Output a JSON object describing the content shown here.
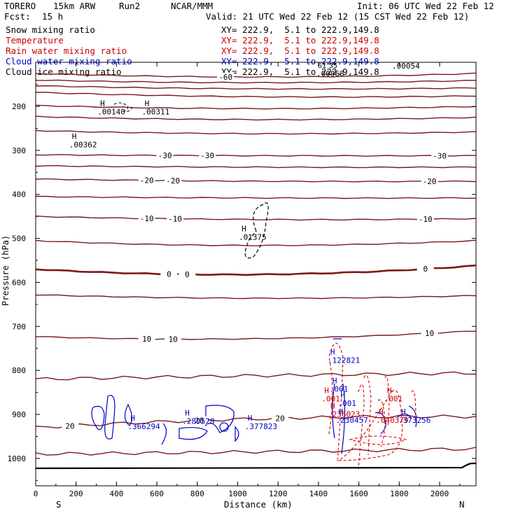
{
  "header": {
    "model": "TORERO",
    "res": "15km ARW",
    "run": "Run2",
    "org": "NCAR/MMM",
    "init": "Init: 06 UTC Wed 22 Feb 12",
    "fcst_label": "Fcst:",
    "fcst_value": "15 h",
    "valid": "Valid: 21 UTC Wed 22 Feb 12 (15 CST Wed 22 Feb 12)"
  },
  "legend": [
    {
      "name": "Snow mixing ratio",
      "xy": "XY= 222.9,  5.1 to 222.9,149.8",
      "color": "#000000"
    },
    {
      "name": "Temperature",
      "xy": "XY= 222.9,  5.1 to 222.9,149.8",
      "color": "#cc0000"
    },
    {
      "name": "Rain water mixing ratio",
      "xy": "XY= 222.9,  5.1 to 222.9,149.8",
      "color": "#cc0000"
    },
    {
      "name": "Cloud water mixing ratio",
      "xy": "XY= 222.9,  5.1 to 222.9,149.8",
      "color": "#0000cc"
    },
    {
      "name": "Cloud ice mixing ratio",
      "xy": "XY= 222.9,  5.1 to 222.9,149.8",
      "color": "#000000"
    }
  ],
  "overlap_labels": [
    ".00054",
    ".00068",
    "61",
    "35"
  ],
  "colors": {
    "temperature": "#7a1a1a",
    "freezing": "#7a1a1a",
    "rain": "#dd0000",
    "cloud_water": "#0000cc",
    "snow": "#000000",
    "terrain": "#000000"
  },
  "chart_data": {
    "type": "contour-cross-section",
    "xlabel": "Distance (km)",
    "ylabel": "Pressure (hPa)",
    "xlim": [
      0,
      2180
    ],
    "ylim_hpa": [
      1050,
      100
    ],
    "x_ticks": [
      0,
      200,
      400,
      600,
      800,
      1000,
      1200,
      1400,
      1600,
      1800,
      2000
    ],
    "y_ticks": [
      200,
      300,
      400,
      500,
      600,
      700,
      800,
      900,
      1000
    ],
    "endpoints": {
      "left": "S",
      "right": "N"
    },
    "temperature_contours": [
      {
        "value": -60,
        "label": "-60",
        "p_left": 125,
        "p_mid": 133,
        "p_right": 125,
        "labels_at_km": [
          940
        ]
      },
      {
        "value": -55,
        "label": "",
        "p_left": 140,
        "p_mid": 146,
        "p_right": 141,
        "labels_at_km": []
      },
      {
        "value": -50,
        "label": "",
        "p_left": 153,
        "p_mid": 160,
        "p_right": 158,
        "labels_at_km": []
      },
      {
        "value": -45,
        "label": "",
        "p_left": 168,
        "p_mid": 178,
        "p_right": 176,
        "labels_at_km": []
      },
      {
        "value": -40,
        "label": "",
        "p_left": 198,
        "p_mid": 205,
        "p_right": 200,
        "labels_at_km": []
      },
      {
        "value": -40,
        "label": "",
        "p_left": 223,
        "p_mid": 230,
        "p_right": 225,
        "labels_at_km": []
      },
      {
        "value": -35,
        "label": "",
        "p_left": 255,
        "p_mid": 262,
        "p_right": 258,
        "labels_at_km": []
      },
      {
        "value": -30,
        "label": "-30",
        "p_left": 310,
        "p_mid": 312,
        "p_right": 312,
        "labels_at_km": [
          640,
          850,
          2000
        ]
      },
      {
        "value": -25,
        "label": "",
        "p_left": 335,
        "p_mid": 338,
        "p_right": 338,
        "labels_at_km": []
      },
      {
        "value": -20,
        "label": "-20",
        "p_left": 365,
        "p_mid": 370,
        "p_right": 370,
        "labels_at_km": [
          550,
          680,
          1950
        ]
      },
      {
        "value": -15,
        "label": "",
        "p_left": 405,
        "p_mid": 408,
        "p_right": 408,
        "labels_at_km": []
      },
      {
        "value": -10,
        "label": "-10",
        "p_left": 450,
        "p_mid": 457,
        "p_right": 455,
        "labels_at_km": [
          550,
          690,
          1930
        ]
      },
      {
        "value": -5,
        "label": "",
        "p_left": 505,
        "p_mid": 516,
        "p_right": 505,
        "labels_at_km": []
      },
      {
        "value": 0,
        "label": "0",
        "p_left": 570,
        "p_mid": 582,
        "p_right": 562,
        "labels_at_km": [
          660,
          750,
          1930
        ]
      },
      {
        "value": 5,
        "label": "",
        "p_left": 628,
        "p_mid": 636,
        "p_right": 630,
        "labels_at_km": []
      },
      {
        "value": 10,
        "label": "10",
        "p_left": 723,
        "p_mid": 728,
        "p_right": 710,
        "labels_at_km": [
          550,
          680,
          1950
        ]
      },
      {
        "value": 15,
        "label": "",
        "p_left": 820,
        "p_mid": 812,
        "p_right": 806,
        "labels_at_km": []
      },
      {
        "value": 20,
        "label": "20",
        "p_left": 930,
        "p_mid": 910,
        "p_right": 905,
        "labels_at_km": [
          170,
          810,
          1210
        ]
      },
      {
        "value": 25,
        "label": "",
        "p_left": 990,
        "p_mid": 985,
        "p_right": 978,
        "labels_at_km": []
      }
    ],
    "maxima_labels": [
      {
        "label": ".00140",
        "km": 340,
        "hpa": 215,
        "color": "#000000"
      },
      {
        "label": ".00311",
        "km": 560,
        "hpa": 215,
        "color": "#000000"
      },
      {
        "label": ".00362",
        "km": 200,
        "hpa": 290,
        "color": "#000000"
      },
      {
        "label": ".01375",
        "km": 1040,
        "hpa": 500,
        "color": "#000000"
      },
      {
        "label": ".366294",
        "km": 490,
        "hpa": 930,
        "color": "#0000cc"
      },
      {
        "label": ".289528",
        "km": 760,
        "hpa": 918,
        "color": "#0000cc"
      },
      {
        "label": ".377823",
        "km": 1070,
        "hpa": 930,
        "color": "#0000cc"
      },
      {
        "label": ".122821",
        "km": 1480,
        "hpa": 780,
        "color": "#0000cc"
      },
      {
        "label": ".001",
        "km": 1490,
        "hpa": 845,
        "color": "#0000cc"
      },
      {
        "label": ".001",
        "km": 1450,
        "hpa": 867,
        "color": "#cc0000"
      },
      {
        "label": ".001",
        "km": 1530,
        "hpa": 878,
        "color": "#0000cc"
      },
      {
        "label": ".001",
        "km": 1760,
        "hpa": 867,
        "color": "#cc0000"
      },
      {
        "label": ".236023",
        "km": 1480,
        "hpa": 902,
        "color": "#cc0000"
      },
      {
        "label": ".230457",
        "km": 1520,
        "hpa": 916,
        "color": "#0000cc"
      },
      {
        "label": ".040379",
        "km": 1720,
        "hpa": 916,
        "color": "#cc0000"
      },
      {
        "label": ".373256",
        "km": 1830,
        "hpa": 916,
        "color": "#0000cc"
      }
    ]
  }
}
